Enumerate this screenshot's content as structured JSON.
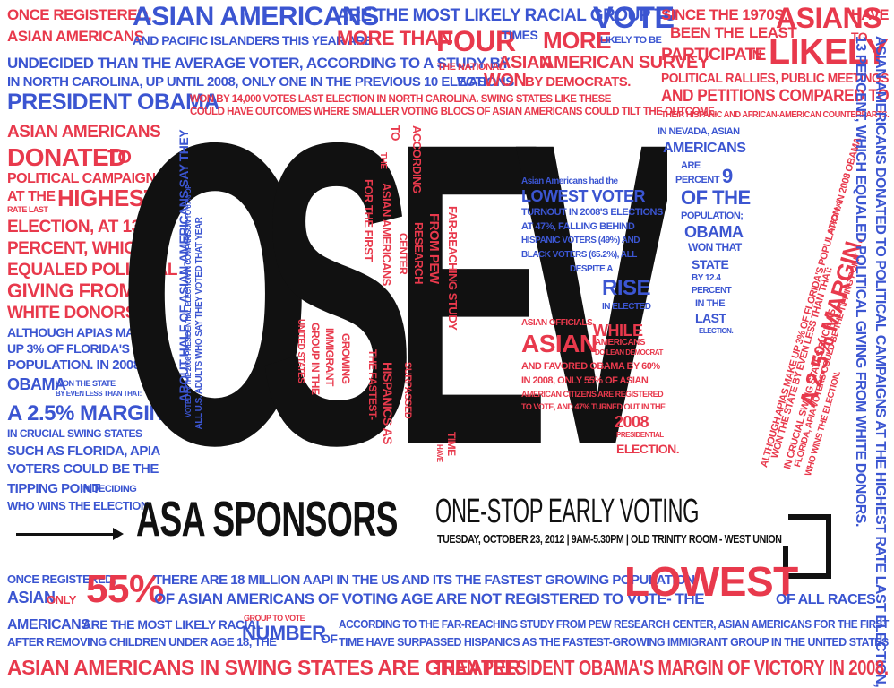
{
  "top_left": {
    "l1a": "Once registered,",
    "l1b": "Asian Americans",
    "l1c": "are the most likely racial group to",
    "l1d": "vote",
    "l2a": "Asian Americans",
    "l2b": "and Pacific Islanders this year are",
    "l2c": "more than",
    "l2d": "four",
    "l2e": "times",
    "l2f": "more",
    "l2g": "likely to be",
    "l3a": "undecided than the average voter, according to a study by",
    "l3b": "the national",
    "l3c": "Asian",
    "l3d": "American Survey",
    "l4a": "In North Carolina, up until 2008, only one in the previous 10 elections",
    "l4b": "was",
    "l4c": "won",
    "l4d": "by Democrats.",
    "l5a": "President Obama",
    "l5b": "won by 14,000 votes last election in North Carolina. Swing states like these",
    "l5c": "could have outcomes where smaller voting blocs of Asian Americans could tilt the outcome."
  },
  "top_right": {
    "a": "Since the 1970s,",
    "b": "Asians",
    "c": "have",
    "d": "been the",
    "e": "least",
    "f": "to",
    "g": "participate",
    "h": "in",
    "i": "likely",
    "j": "political rallies, public meetings",
    "k": "and petitions compared to",
    "l": "their Hispanic and African-American counterparts."
  },
  "left_col": {
    "a": "Asian Americans",
    "b": "donated",
    "c": "to",
    "d": "political campaigns",
    "e": "at the",
    "f": "highest",
    "g": "rate last",
    "h": "election, at 13",
    "i": "percent, which",
    "j": "equaled political",
    "k": "giving from",
    "l": "white donors.",
    "m": "Although APIAs make",
    "n": "up 3% of Florida's",
    "o": "population. In 2008",
    "p": "Obama",
    "q": "won the state",
    "r": "by even less than that:",
    "s": "a 2.5% margin.",
    "t": "In crucial swing states",
    "u": "such as Florida, APIA",
    "v": "voters could be the",
    "w": "tipping point",
    "x": "in deciding",
    "y": "who wins the election."
  },
  "big_word": {
    "letters": [
      "O",
      "S",
      "E",
      "V"
    ]
  },
  "inside_o": {
    "a": "About half of Asian-Americans say they",
    "b": "voted in the 2008 presidential election in comparison to 67% of",
    "c": "all U.S. adults who say they voted that year"
  },
  "inside_s": {
    "a": "Asian Americans",
    "b": "for the first",
    "c": "time",
    "d": "have",
    "e": "surpassed",
    "f": "Hispanics as",
    "g": "the fastest-",
    "h": "growing",
    "i": "immigrant",
    "j": "group in the",
    "k": "United States",
    "l": "According",
    "m": "to",
    "n": "the",
    "o": "far-reaching study",
    "p": "from Pew",
    "q": "Research",
    "r": "Center"
  },
  "inside_e": {
    "a": "Asian Americans had the",
    "b": "lowest voter",
    "c": "turnout in 2008's elections",
    "d": "at 47%, falling behind",
    "e": "Hispanic voters (49%) and",
    "f": "black voters (65.2%), all",
    "g": "despite a",
    "h": "rise",
    "i": "in elected",
    "j": "Asian officials.",
    "k": "Asian",
    "l": "While",
    "m": "Americans",
    "n": "do lean Democrat",
    "o": "and favored Obama by 60%",
    "p": "in 2008, only 55% of Asian",
    "q": "American citizens are registered",
    "r": "to vote, and 47% turned out in the",
    "s": "2008",
    "t": "presidential",
    "u": "election."
  },
  "inside_v": {
    "a": "In Nevada, Asian",
    "b": "Americans",
    "c": "are",
    "d": "percent",
    "e": "9",
    "f": "of the",
    "g": "population;",
    "h": "Obama",
    "i": "won that",
    "j": "state",
    "k": "by 12.4",
    "l": "percent",
    "m": "in the",
    "n": "last",
    "o": "election."
  },
  "right_rotated": {
    "a": "A 2.5% margin.",
    "b": "Although APIAs make up 3% of Florida's population. In 2008 Obama",
    "c": "won the state by even less than that:",
    "d": "in crucial swing states such as",
    "e": "Florida, APIA voters could be the tipping point",
    "f": "in deciding",
    "g": "who wins the election.",
    "h": "Asian Americans donated to political campaigns at the highest rate last election, at",
    "i": "13 percent, which equaled political giving from white donors."
  },
  "banner": {
    "title": "ASA Sponsors",
    "subtitle": "One-Stop Early Voting",
    "details": "Tuesday, October 23, 2012 | 9am-5.30pm | Old Trinity Room - West Union"
  },
  "bottom": {
    "a": "Once registered,",
    "b": "Asian",
    "c": "only",
    "d": "55%",
    "e": "There are 18 million AAPI in the US and its the fastest growing population",
    "f": "of Asian Americans of voting age are not registered to vote- the",
    "g": "lowest",
    "h": "of all races",
    "i": "Americans",
    "j": "are the most likely racial",
    "k": "group to vote",
    "l": "number",
    "m": "of",
    "n": "according to the far-reaching study from Pew Research Center, Asian Americans for the first",
    "o": "after removing children under age 18, the",
    "p": "time have surpassed Hispanics as the fastest-growing immigrant group in the United States",
    "q": "Asian Americans in swing states are greater",
    "r": "than President Obama's margin of victory in 2008."
  },
  "colors": {
    "red": "#e8394c",
    "blue": "#3b55d1",
    "black": "#111111"
  }
}
